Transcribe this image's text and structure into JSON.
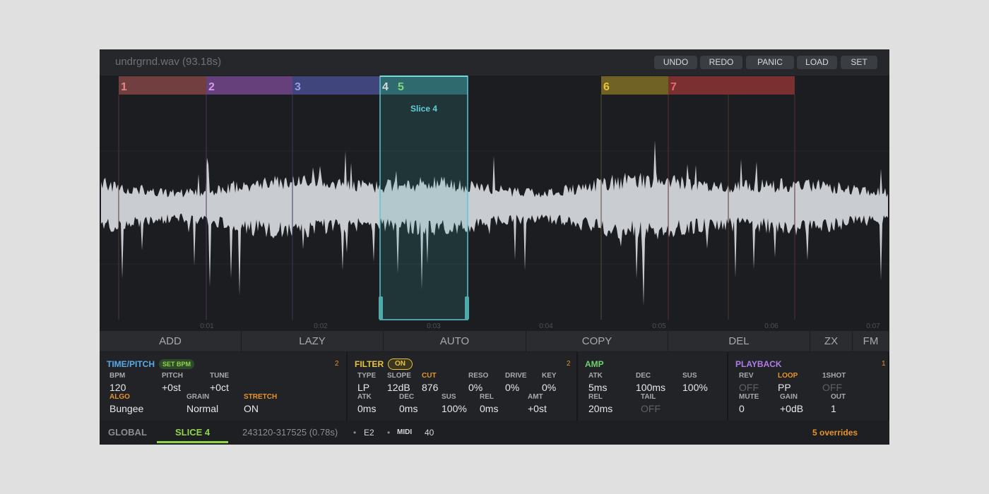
{
  "header": {
    "filename": "undrgrnd.wav (93.18s)",
    "buttons": [
      "UNDO",
      "REDO",
      "PANIC",
      "LOAD",
      "SET"
    ]
  },
  "slices": [
    "1",
    "2",
    "3",
    "4",
    "5",
    "6",
    "7"
  ],
  "selection_label": "Slice 4",
  "time_labels": [
    "0:01",
    "0:02",
    "0:03",
    "0:04",
    "0:05",
    "0:06",
    "0:07"
  ],
  "toolbar": [
    "ADD",
    "LAZY",
    "AUTO",
    "COPY",
    "DEL",
    "ZX",
    "FM"
  ],
  "sections": [
    {
      "title": "TIME/PITCH",
      "badge": "SET BPM",
      "count": "2",
      "rows": [
        [
          {
            "label": "BPM",
            "value": "120"
          },
          {
            "label": "PITCH",
            "value": "+0st"
          },
          {
            "label": "TUNE",
            "value": "+0ct"
          }
        ],
        [
          {
            "label": "ALGO",
            "value": "Bungee",
            "override": true
          },
          {
            "label": "GRAIN",
            "value": "Normal"
          },
          {
            "label": "STRETCH",
            "value": "ON",
            "override": true
          }
        ]
      ]
    },
    {
      "title": "FILTER",
      "badge": "ON",
      "count": "2",
      "rows": [
        [
          {
            "label": "TYPE",
            "value": "LP"
          },
          {
            "label": "SLOPE",
            "value": "12dB"
          },
          {
            "label": "CUT",
            "value": "876",
            "override": true
          },
          {
            "label": "RESO",
            "value": "0%"
          },
          {
            "label": "DRIVE",
            "value": "0%"
          },
          {
            "label": "KEY",
            "value": "0%"
          }
        ],
        [
          {
            "label": "ATK",
            "value": "0ms"
          },
          {
            "label": "DEC",
            "value": "0ms"
          },
          {
            "label": "SUS",
            "value": "100%"
          },
          {
            "label": "REL",
            "value": "0ms"
          },
          {
            "label": "AMT",
            "value": "+0st"
          }
        ]
      ]
    },
    {
      "title": "AMP",
      "rows": [
        [
          {
            "label": "ATK",
            "value": "5ms"
          },
          {
            "label": "DEC",
            "value": "100ms"
          },
          {
            "label": "SUS",
            "value": "100%"
          }
        ],
        [
          {
            "label": "REL",
            "value": "20ms"
          },
          {
            "label": "TAIL",
            "value": "OFF",
            "inactive": true
          }
        ]
      ]
    },
    {
      "title": "PLAYBACK",
      "count": "1",
      "rows": [
        [
          {
            "label": "REV",
            "value": "OFF",
            "inactive": true
          },
          {
            "label": "LOOP",
            "value": "PP",
            "override": true
          },
          {
            "label": "1SHOT",
            "value": "OFF",
            "inactive": true
          }
        ],
        [
          {
            "label": "MUTE",
            "value": "0"
          },
          {
            "label": "GAIN",
            "value": "+0dB"
          },
          {
            "label": "OUT",
            "value": "1"
          }
        ]
      ]
    }
  ],
  "footer": {
    "tabs": [
      "GLOBAL",
      "SLICE 4"
    ],
    "range": "243120-317525 (0.78s)",
    "items": [
      "•",
      "E2",
      "•",
      "MIDI",
      "40"
    ],
    "overrides": "5 overrides"
  }
}
